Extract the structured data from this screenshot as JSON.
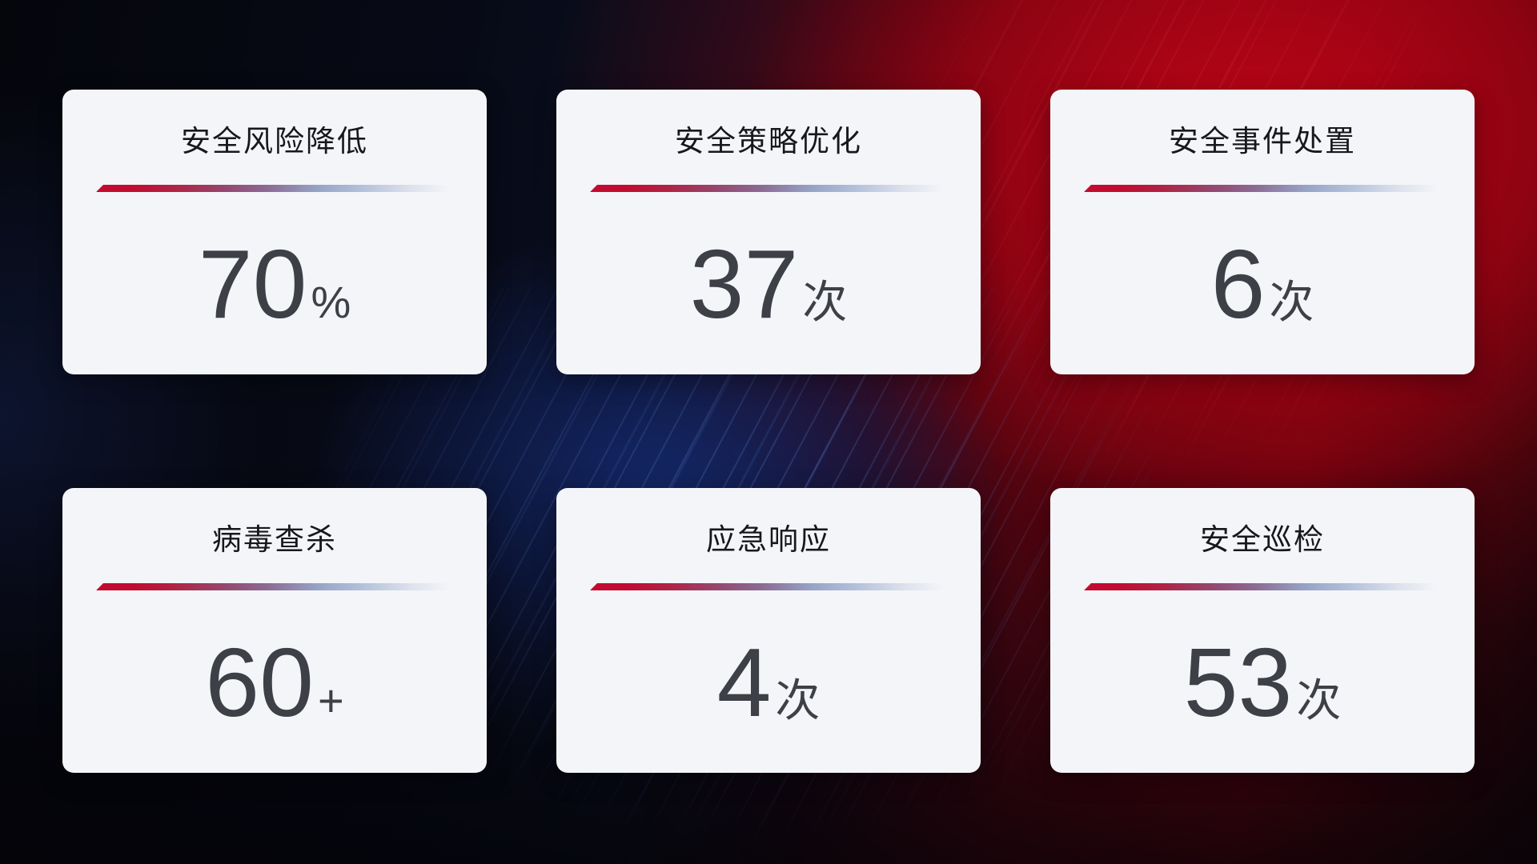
{
  "cards": [
    {
      "title": "安全风险降低",
      "value": "70",
      "unit": "%"
    },
    {
      "title": "安全策略优化",
      "value": "37",
      "unit": "次"
    },
    {
      "title": "安全事件处置",
      "value": "6",
      "unit": "次"
    },
    {
      "title": "病毒查杀",
      "value": "60",
      "unit": "+"
    },
    {
      "title": "应急响应",
      "value": "4",
      "unit": "次"
    },
    {
      "title": "安全巡检",
      "value": "53",
      "unit": "次"
    }
  ],
  "colors": {
    "card_background": "#f4f5f8",
    "title_text": "#17181c",
    "value_text": "#3d4046",
    "divider_red": "#c20b30",
    "divider_blue": "#b5c2dc",
    "background_red_glow": "#bd0417",
    "background_blue_glow": "#152a70",
    "background_base": "#06070d"
  }
}
